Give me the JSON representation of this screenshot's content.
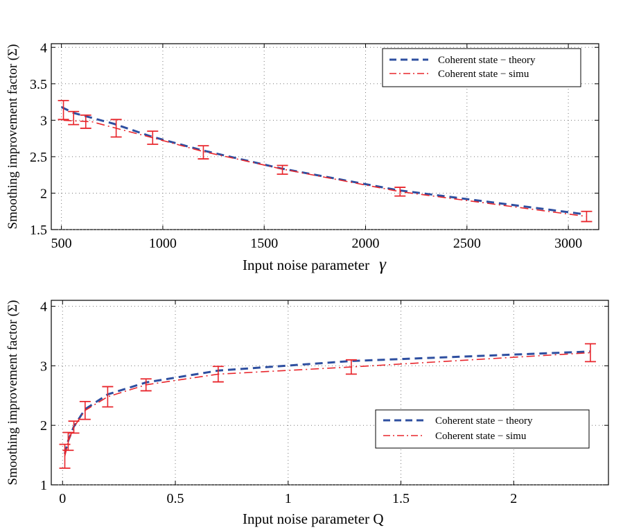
{
  "chart_data": [
    {
      "type": "line",
      "title": "",
      "xlabel": "Input noise parameter",
      "xlabel_symbol": "γ",
      "ylabel": "Smoothing improvement factor (Σ)",
      "xlim": [
        450,
        3150
      ],
      "ylim": [
        1.5,
        4.05
      ],
      "xticks": [
        500,
        1000,
        1500,
        2000,
        2500,
        3000
      ],
      "xtick_labels": [
        "500",
        "1000",
        "1500",
        "2000",
        "2500",
        "3000"
      ],
      "yticks": [
        1.5,
        2,
        2.5,
        3,
        3.5,
        4
      ],
      "ytick_labels": [
        "1.5",
        "2",
        "2.5",
        "3",
        "3.5",
        "4"
      ],
      "grid": true,
      "legend_position": "top-right",
      "series": [
        {
          "name": "Coherent state − theory",
          "style": "dashed",
          "color": "#2e4fa0",
          "x": [
            500,
            560,
            640,
            760,
            940,
            1190,
            1580,
            2160,
            3080
          ],
          "y": [
            3.18,
            3.1,
            3.04,
            2.95,
            2.78,
            2.59,
            2.34,
            2.04,
            1.71
          ]
        },
        {
          "name": "Coherent state − simu",
          "style": "dashdot",
          "color": "#e8262c",
          "x": [
            510,
            570,
            650,
            770,
            950,
            1200,
            1590,
            2170,
            3090
          ],
          "y": [
            3.0,
            2.99,
            2.98,
            2.89,
            2.76,
            2.57,
            2.33,
            2.02,
            1.68
          ],
          "err": [
            0.13,
            0.09,
            0.09,
            0.12,
            0.09,
            0.09,
            0.06,
            0.06,
            0.07
          ],
          "err_x": [
            510,
            560,
            620,
            770,
            950,
            1200,
            1590,
            2170,
            3090
          ],
          "err_y": [
            3.14,
            3.03,
            2.98,
            2.89,
            2.76,
            2.56,
            2.32,
            2.02,
            1.68
          ]
        }
      ]
    },
    {
      "type": "line",
      "title": "",
      "xlabel": "Input noise parameter Q",
      "ylabel": "Smoothing improvement factor (Σ)",
      "xlim": [
        -0.05,
        2.42
      ],
      "ylim": [
        1.0,
        4.1
      ],
      "xticks": [
        0,
        0.5,
        1,
        1.5,
        2
      ],
      "xtick_labels": [
        "0",
        "0.5",
        "1",
        "1.5",
        "2"
      ],
      "yticks": [
        1,
        2,
        3,
        4
      ],
      "ytick_labels": [
        "1",
        "2",
        "3",
        "4"
      ],
      "grid": true,
      "legend_position": "bottom-right",
      "series": [
        {
          "name": "Coherent state − theory",
          "style": "dashed",
          "color": "#2e4fa0",
          "x": [
            0.01,
            0.025,
            0.05,
            0.1,
            0.2,
            0.37,
            0.69,
            1.28,
            2.34
          ],
          "y": [
            1.52,
            1.74,
            1.98,
            2.27,
            2.52,
            2.72,
            2.92,
            3.08,
            3.24
          ]
        },
        {
          "name": "Coherent state − simu",
          "style": "dashdot",
          "color": "#e8262c",
          "x": [
            0.01,
            0.025,
            0.05,
            0.1,
            0.2,
            0.37,
            0.69,
            1.28,
            2.34
          ],
          "y": [
            1.48,
            1.73,
            1.97,
            2.25,
            2.48,
            2.68,
            2.86,
            2.98,
            3.22
          ],
          "err": [
            0.2,
            0.15,
            0.1,
            0.15,
            0.17,
            0.1,
            0.13,
            0.12,
            0.15
          ]
        }
      ]
    }
  ]
}
